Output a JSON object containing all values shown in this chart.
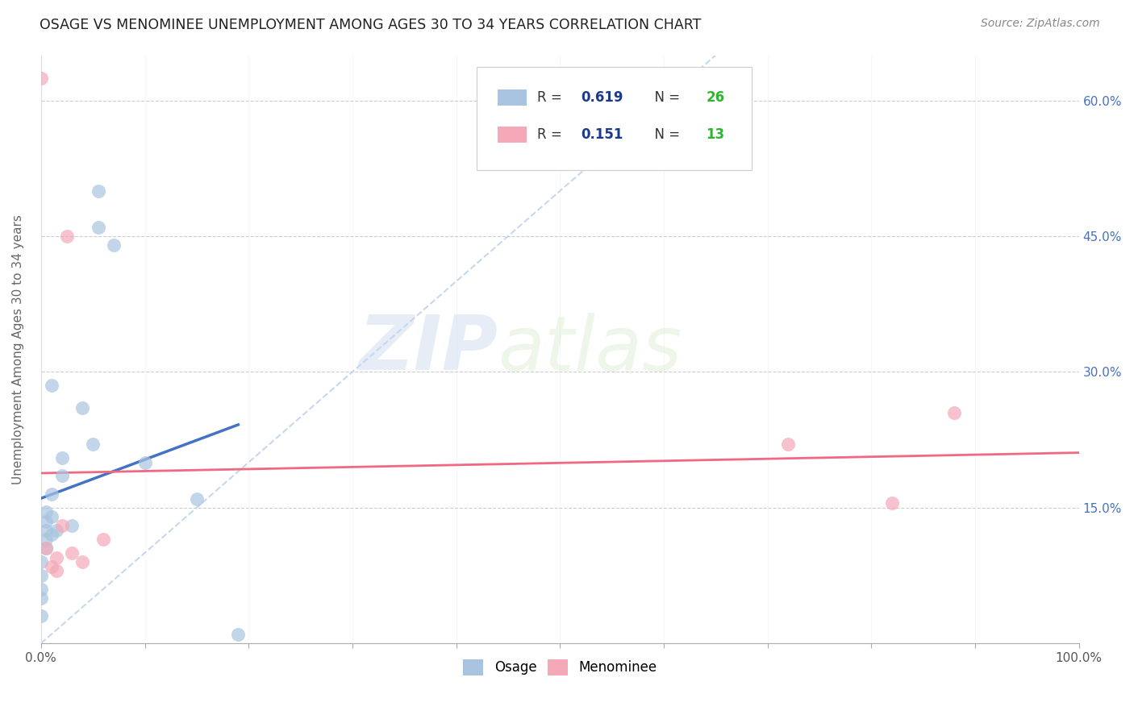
{
  "title": "OSAGE VS MENOMINEE UNEMPLOYMENT AMONG AGES 30 TO 34 YEARS CORRELATION CHART",
  "source": "Source: ZipAtlas.com",
  "ylabel": "Unemployment Among Ages 30 to 34 years",
  "xlim": [
    0.0,
    1.0
  ],
  "ylim": [
    0.0,
    0.65
  ],
  "xtick_positions": [
    0.0,
    0.1,
    0.2,
    0.3,
    0.4,
    0.5,
    0.6,
    0.7,
    0.8,
    0.9,
    1.0
  ],
  "xticklabels_show": {
    "0.0": "0.0%",
    "1.0": "100.0%"
  },
  "ytick_positions": [
    0.0,
    0.15,
    0.3,
    0.45,
    0.6
  ],
  "ytick_labels": [
    "",
    "15.0%",
    "30.0%",
    "45.0%",
    "60.0%"
  ],
  "osage_color": "#a8c4e0",
  "menominee_color": "#f4a8b8",
  "osage_line_color": "#4472c4",
  "menominee_line_color": "#f06882",
  "diagonal_color": "#b8cfe8",
  "r_osage": 0.619,
  "n_osage": 26,
  "r_menominee": 0.151,
  "n_menominee": 13,
  "osage_x": [
    0.0,
    0.0,
    0.0,
    0.0,
    0.0,
    0.005,
    0.005,
    0.005,
    0.005,
    0.005,
    0.01,
    0.01,
    0.01,
    0.01,
    0.015,
    0.02,
    0.02,
    0.03,
    0.04,
    0.05,
    0.055,
    0.055,
    0.07,
    0.1,
    0.15,
    0.19
  ],
  "osage_y": [
    0.03,
    0.05,
    0.06,
    0.075,
    0.09,
    0.105,
    0.115,
    0.125,
    0.135,
    0.145,
    0.12,
    0.14,
    0.165,
    0.285,
    0.125,
    0.185,
    0.205,
    0.13,
    0.26,
    0.22,
    0.46,
    0.5,
    0.44,
    0.2,
    0.16,
    0.01
  ],
  "menominee_x": [
    0.0,
    0.005,
    0.01,
    0.015,
    0.015,
    0.02,
    0.025,
    0.03,
    0.04,
    0.06,
    0.72,
    0.82,
    0.88
  ],
  "menominee_y": [
    0.625,
    0.105,
    0.085,
    0.08,
    0.095,
    0.13,
    0.45,
    0.1,
    0.09,
    0.115,
    0.22,
    0.155,
    0.255
  ],
  "watermark_zip": "ZIP",
  "watermark_atlas": "atlas",
  "background_color": "#ffffff",
  "legend_r_color": "#1a3a8a",
  "legend_n_color": "#2db52d",
  "legend_text_color": "#333333",
  "marker_size": 150,
  "marker_alpha": 0.7
}
